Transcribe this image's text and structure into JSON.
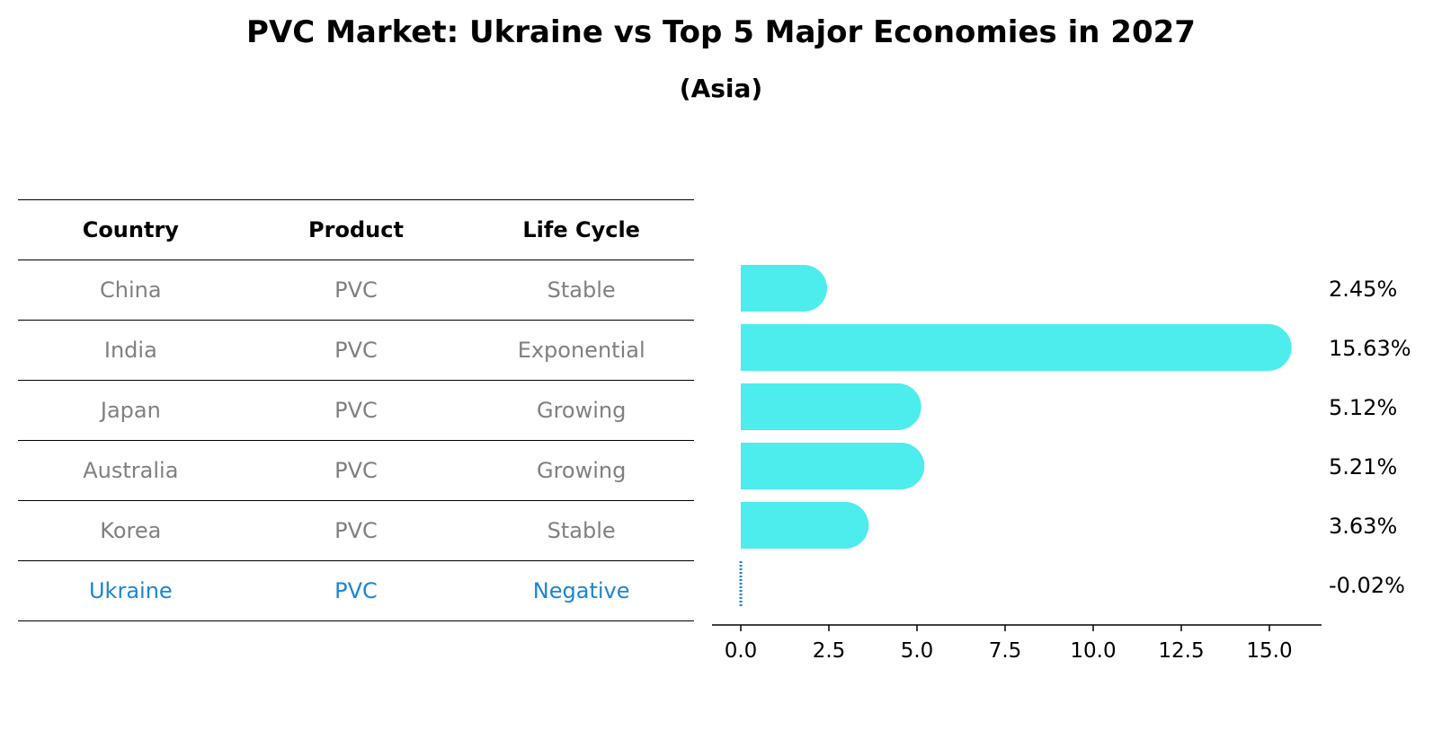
{
  "chart_data": {
    "type": "bar",
    "orientation": "horizontal",
    "title": "PVC Market: Ukraine vs Top 5 Major Economies in 2027",
    "subtitle": "(Asia)",
    "table": {
      "columns": [
        "Country",
        "Product",
        "Life Cycle"
      ],
      "rows": [
        {
          "country": "China",
          "product": "PVC",
          "life_cycle": "Stable"
        },
        {
          "country": "India",
          "product": "PVC",
          "life_cycle": "Exponential"
        },
        {
          "country": "Japan",
          "product": "PVC",
          "life_cycle": "Growing"
        },
        {
          "country": "Australia",
          "product": "PVC",
          "life_cycle": "Growing"
        },
        {
          "country": "Korea",
          "product": "PVC",
          "life_cycle": "Stable"
        },
        {
          "country": "Ukraine",
          "product": "PVC",
          "life_cycle": "Negative"
        }
      ],
      "highlight_row": "Ukraine"
    },
    "categories": [
      "China",
      "India",
      "Japan",
      "Australia",
      "Korea",
      "Ukraine"
    ],
    "values": [
      2.45,
      15.63,
      5.12,
      5.21,
      3.63,
      -0.02
    ],
    "value_labels": [
      "2.45%",
      "15.63%",
      "5.12%",
      "5.21%",
      "3.63%",
      "-0.02%"
    ],
    "xlim": [
      -0.8,
      16.5
    ],
    "xticks": [
      0.0,
      2.5,
      5.0,
      7.5,
      10.0,
      12.5,
      15.0
    ],
    "xtick_labels": [
      "0.0",
      "2.5",
      "5.0",
      "7.5",
      "10.0",
      "12.5",
      "15.0"
    ],
    "bar_color": "#4deced",
    "negative_color": "#1a85d6",
    "text_color_muted": "#808080",
    "highlight_color": "#1a85d6"
  }
}
